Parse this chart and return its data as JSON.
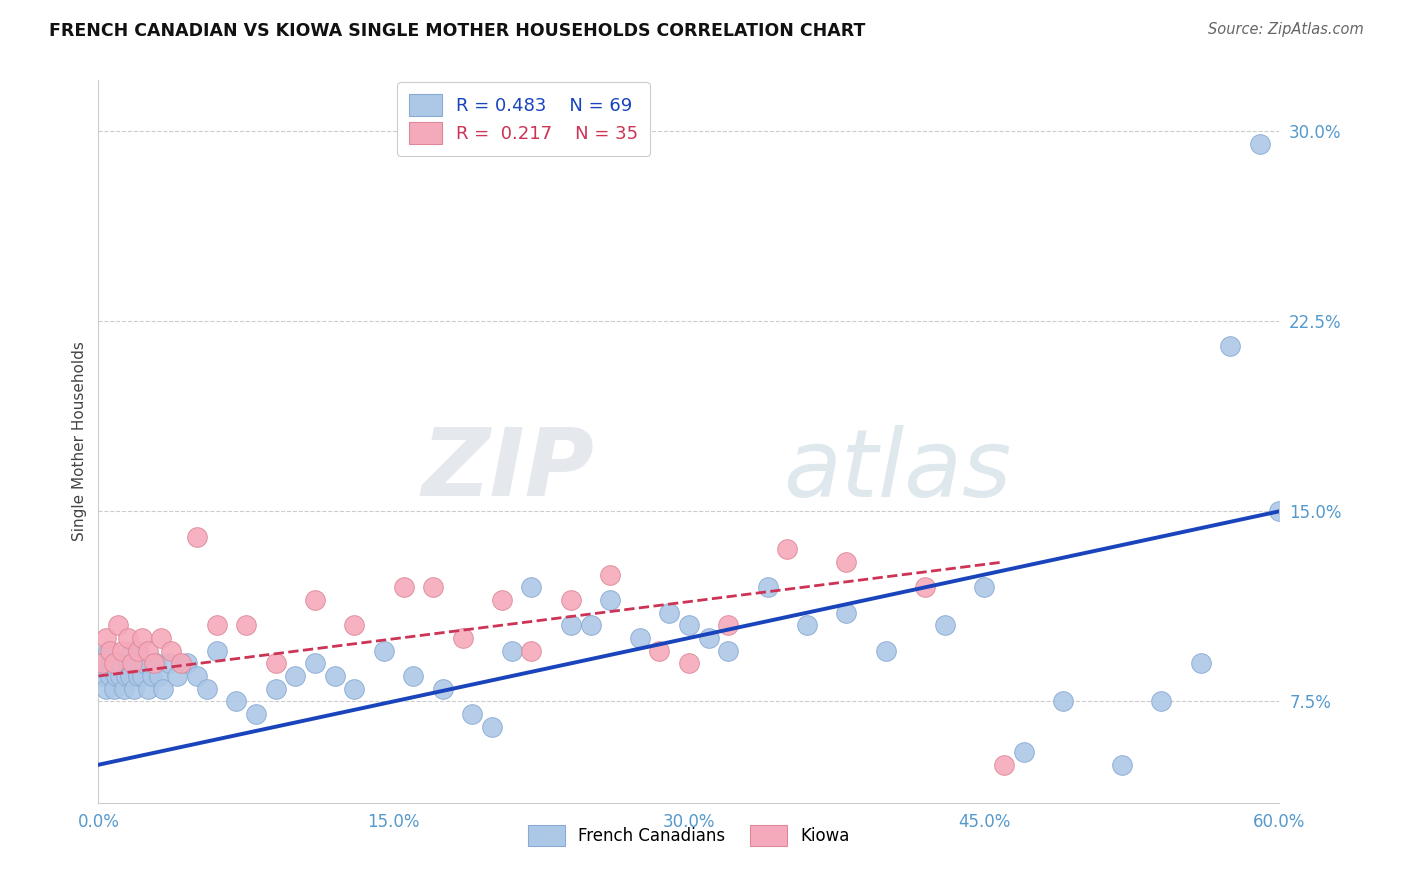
{
  "title": "FRENCH CANADIAN VS KIOWA SINGLE MOTHER HOUSEHOLDS CORRELATION CHART",
  "source": "Source: ZipAtlas.com",
  "ylabel": "Single Mother Households",
  "xlabel_ticks": [
    "0.0%",
    "15.0%",
    "30.0%",
    "45.0%",
    "60.0%"
  ],
  "xlabel_vals": [
    0.0,
    15.0,
    30.0,
    45.0,
    60.0
  ],
  "ylabel_ticks": [
    "7.5%",
    "15.0%",
    "22.5%",
    "30.0%"
  ],
  "ylabel_vals": [
    7.5,
    15.0,
    22.5,
    30.0
  ],
  "xlim": [
    0.0,
    60.0
  ],
  "ylim": [
    3.5,
    32.0
  ],
  "french_R": 0.483,
  "french_N": 69,
  "kiowa_R": 0.217,
  "kiowa_N": 35,
  "legend_labels": [
    "French Canadians",
    "Kiowa"
  ],
  "blue_color": "#adc8e6",
  "pink_color": "#f5aabb",
  "blue_line_color": "#1a44bb",
  "pink_line_color": "#cc3355",
  "blue_marker_edge": "#88aad4",
  "pink_marker_edge": "#dd8898",
  "watermark_zip": "ZIP",
  "watermark_atlas": "atlas",
  "french_x": [
    0.2,
    0.3,
    0.4,
    0.5,
    0.6,
    0.7,
    0.8,
    0.9,
    1.0,
    1.1,
    1.2,
    1.3,
    1.4,
    1.5,
    1.6,
    1.7,
    1.8,
    1.9,
    2.0,
    2.1,
    2.2,
    2.3,
    2.5,
    2.7,
    2.9,
    3.1,
    3.3,
    3.6,
    4.0,
    4.5,
    5.0,
    5.5,
    6.0,
    7.0,
    8.0,
    9.0,
    10.0,
    11.0,
    12.0,
    13.0,
    14.5,
    16.0,
    17.5,
    19.0,
    20.0,
    21.0,
    22.0,
    24.0,
    25.0,
    26.0,
    27.5,
    29.0,
    30.0,
    31.0,
    32.0,
    34.0,
    36.0,
    38.0,
    40.0,
    43.0,
    45.0,
    47.0,
    49.0,
    52.0,
    54.0,
    56.0,
    57.5,
    59.0,
    60.0
  ],
  "french_y": [
    8.5,
    9.0,
    8.0,
    9.5,
    8.5,
    9.0,
    8.0,
    8.5,
    9.0,
    8.5,
    9.0,
    8.0,
    8.5,
    9.0,
    8.5,
    9.5,
    8.0,
    9.0,
    8.5,
    9.0,
    8.5,
    9.0,
    8.0,
    8.5,
    9.0,
    8.5,
    8.0,
    9.0,
    8.5,
    9.0,
    8.5,
    8.0,
    9.5,
    7.5,
    7.0,
    8.0,
    8.5,
    9.0,
    8.5,
    8.0,
    9.5,
    8.5,
    8.0,
    7.0,
    6.5,
    9.5,
    12.0,
    10.5,
    10.5,
    11.5,
    10.0,
    11.0,
    10.5,
    10.0,
    9.5,
    12.0,
    10.5,
    11.0,
    9.5,
    10.5,
    12.0,
    5.5,
    7.5,
    5.0,
    7.5,
    9.0,
    21.5,
    29.5,
    15.0
  ],
  "kiowa_x": [
    0.2,
    0.4,
    0.6,
    0.8,
    1.0,
    1.2,
    1.5,
    1.7,
    2.0,
    2.2,
    2.5,
    2.8,
    3.2,
    3.7,
    4.2,
    5.0,
    6.0,
    7.5,
    9.0,
    11.0,
    13.0,
    15.5,
    17.0,
    18.5,
    20.5,
    22.0,
    24.0,
    26.0,
    28.5,
    30.0,
    32.0,
    35.0,
    38.0,
    42.0,
    46.0
  ],
  "kiowa_y": [
    9.0,
    10.0,
    9.5,
    9.0,
    10.5,
    9.5,
    10.0,
    9.0,
    9.5,
    10.0,
    9.5,
    9.0,
    10.0,
    9.5,
    9.0,
    14.0,
    10.5,
    10.5,
    9.0,
    11.5,
    10.5,
    12.0,
    12.0,
    10.0,
    11.5,
    9.5,
    11.5,
    12.5,
    9.5,
    9.0,
    10.5,
    13.5,
    13.0,
    12.0,
    5.0
  ]
}
